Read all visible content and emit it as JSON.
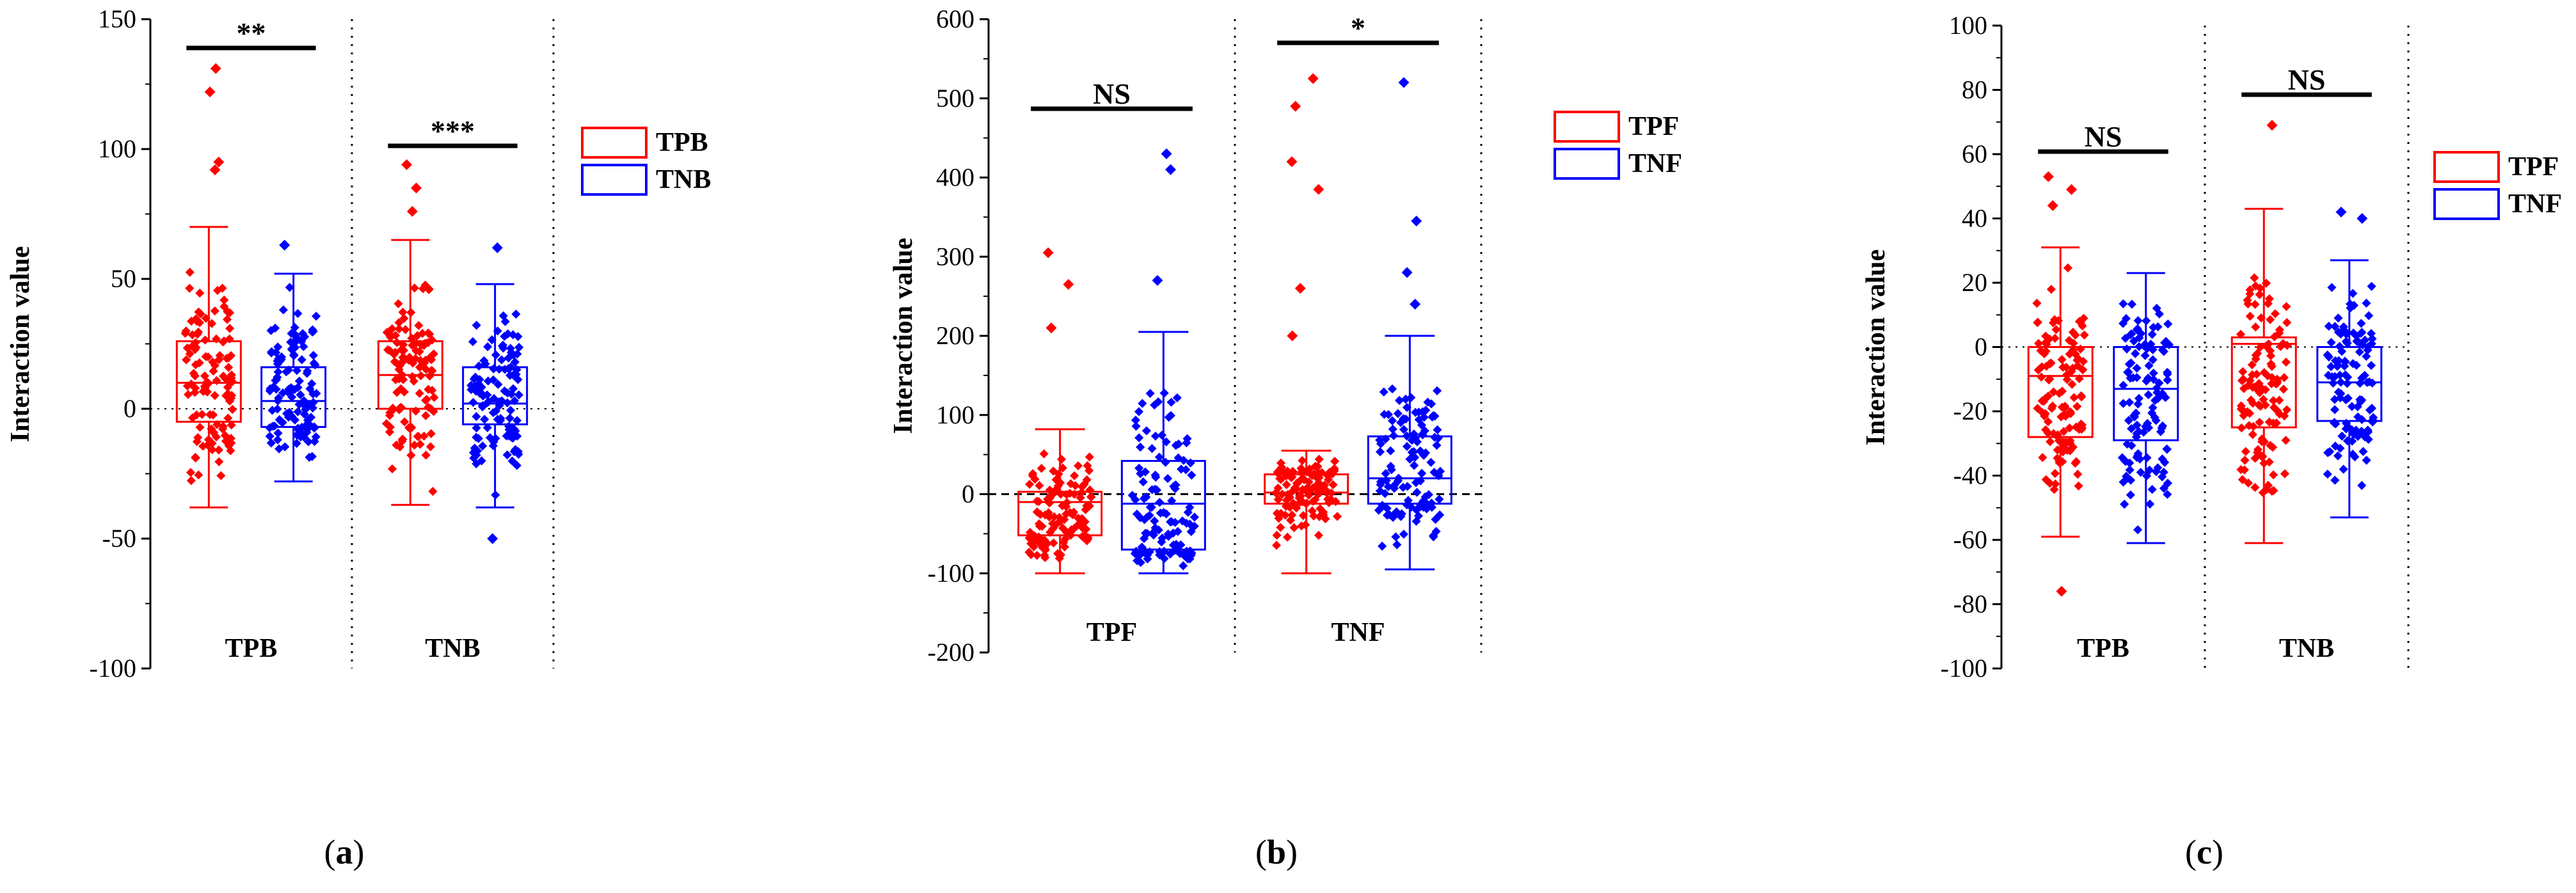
{
  "figure": {
    "panels": [
      {
        "caption_letter": "a",
        "ylabel": "Interaction value",
        "legend": [
          {
            "label": "TPB",
            "color": "#ff0000"
          },
          {
            "label": "TNB",
            "color": "#0000ff"
          }
        ]
      },
      {
        "caption_letter": "b",
        "ylabel": "Interaction value",
        "legend": [
          {
            "label": "TPF",
            "color": "#ff0000"
          },
          {
            "label": "TNF",
            "color": "#0000ff"
          }
        ]
      },
      {
        "caption_letter": "c",
        "ylabel": "Interaction value",
        "legend": [
          {
            "label": "TPF",
            "color": "#ff0000"
          },
          {
            "label": "TNF",
            "color": "#0000ff"
          }
        ]
      }
    ]
  },
  "chart_data": [
    {
      "type": "box",
      "ylabel": "Interaction value",
      "ylim": [
        -100,
        150
      ],
      "yticks": [
        -100,
        -50,
        0,
        50,
        100,
        150
      ],
      "groups": [
        "TPB",
        "TNB"
      ],
      "series_names": [
        "TPB",
        "TNB"
      ],
      "boxes": [
        {
          "group": 0,
          "series": 0,
          "whisker_low": -38,
          "q1": -5,
          "median": 10,
          "q3": 26,
          "whisker_high": 70,
          "outliers": [
            95,
            92,
            122,
            131
          ]
        },
        {
          "group": 0,
          "series": 1,
          "whisker_low": -28,
          "q1": -7,
          "median": 3,
          "q3": 16,
          "whisker_high": 52,
          "outliers": [
            63
          ]
        },
        {
          "group": 1,
          "series": 0,
          "whisker_low": -37,
          "q1": 0,
          "median": 13,
          "q3": 26,
          "whisker_high": 65,
          "outliers": [
            94,
            85,
            76
          ]
        },
        {
          "group": 1,
          "series": 1,
          "whisker_low": -38,
          "q1": -6,
          "median": 2,
          "q3": 16,
          "whisker_high": 48,
          "outliers": [
            -50,
            62
          ]
        }
      ],
      "significance": [
        {
          "group": 0,
          "label": "**"
        },
        {
          "group": 1,
          "label": "***"
        }
      ]
    },
    {
      "type": "box",
      "ylabel": "Interaction value",
      "ylim": [
        -200,
        600
      ],
      "yticks": [
        -200,
        -100,
        0,
        100,
        200,
        300,
        400,
        500,
        600
      ],
      "groups": [
        "TPF",
        "TNF"
      ],
      "series_names": [
        "TPF",
        "TNF"
      ],
      "boxes": [
        {
          "group": 0,
          "series": 0,
          "whisker_low": -100,
          "q1": -52,
          "median": -10,
          "q3": 3,
          "whisker_high": 82,
          "outliers": [
            305,
            265,
            210
          ]
        },
        {
          "group": 0,
          "series": 1,
          "whisker_low": -100,
          "q1": -70,
          "median": -12,
          "q3": 42,
          "whisker_high": 205,
          "outliers": [
            430,
            410,
            270
          ]
        },
        {
          "group": 1,
          "series": 0,
          "whisker_low": -100,
          "q1": -12,
          "median": 2,
          "q3": 25,
          "whisker_high": 55,
          "outliers": [
            525,
            490,
            420,
            385,
            260,
            200
          ]
        },
        {
          "group": 1,
          "series": 1,
          "whisker_low": -95,
          "q1": -12,
          "median": 20,
          "q3": 73,
          "whisker_high": 200,
          "outliers": [
            520,
            345,
            280,
            240
          ]
        }
      ],
      "significance": [
        {
          "group": 0,
          "label": "NS"
        },
        {
          "group": 1,
          "label": "*"
        }
      ]
    },
    {
      "type": "box",
      "ylabel": "Interaction value",
      "ylim": [
        -100,
        100
      ],
      "yticks": [
        -100,
        -80,
        -60,
        -40,
        -20,
        0,
        20,
        40,
        60,
        80,
        100
      ],
      "groups": [
        "TPB",
        "TNB"
      ],
      "series_names": [
        "TPF",
        "TNF"
      ],
      "boxes": [
        {
          "group": 0,
          "series": 0,
          "whisker_low": -59,
          "q1": -28,
          "median": -9,
          "q3": 0,
          "whisker_high": 31,
          "outliers": [
            -76,
            53,
            49,
            44
          ]
        },
        {
          "group": 0,
          "series": 1,
          "whisker_low": -61,
          "q1": -29,
          "median": -13,
          "q3": 0,
          "whisker_high": 23,
          "outliers": []
        },
        {
          "group": 1,
          "series": 0,
          "whisker_low": -61,
          "q1": -25,
          "median": 1,
          "q3": 3,
          "whisker_high": 43,
          "outliers": [
            69
          ]
        },
        {
          "group": 1,
          "series": 1,
          "whisker_low": -53,
          "q1": -23,
          "median": -11,
          "q3": 0,
          "whisker_high": 27,
          "outliers": [
            42,
            40
          ]
        }
      ],
      "significance": [
        {
          "group": 0,
          "label": "NS"
        },
        {
          "group": 1,
          "label": "NS"
        }
      ]
    }
  ]
}
